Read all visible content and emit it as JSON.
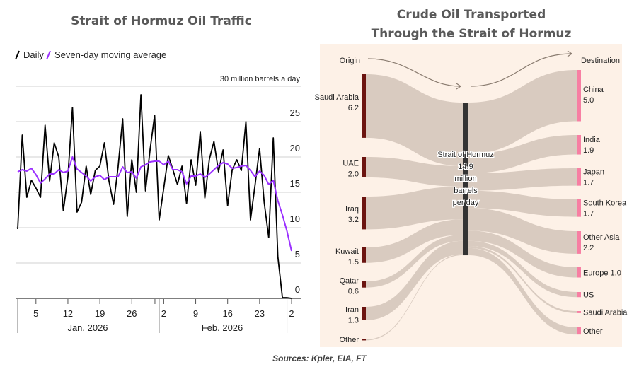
{
  "chart_data": [
    {
      "type": "line",
      "title": "Strait of Hormuz Oil Traffic",
      "unit_label": "30 million barrels a day",
      "ylim": [
        0,
        30
      ],
      "yticks": [
        "0",
        "5",
        "10",
        "15",
        "20",
        "25"
      ],
      "xtick_labels": [
        "5",
        "12",
        "19",
        "26",
        "2",
        "9",
        "16",
        "23",
        "2"
      ],
      "month_labels": [
        "Jan. 2026",
        "Feb. 2026"
      ],
      "x_start": "2026-01-01",
      "x_end": "2026-03-02",
      "grid": true,
      "legend_placement": "top-left",
      "series": [
        {
          "name": "Daily",
          "color": "#000000",
          "values": [
            9.8,
            23.1,
            14.3,
            16.7,
            15.6,
            14.3,
            24.5,
            16.6,
            22.0,
            20.0,
            12.4,
            17.2,
            27.0,
            12.2,
            13.6,
            18.7,
            14.7,
            18.1,
            18.7,
            22.0,
            16.6,
            13.3,
            18.6,
            25.4,
            11.6,
            19.6,
            15.0,
            28.8,
            15.2,
            21.0,
            25.9,
            11.1,
            15.6,
            20.2,
            18.2,
            16.1,
            18.7,
            13.4,
            19.6,
            16.0,
            23.6,
            14.2,
            19.7,
            22.2,
            17.9,
            21.0,
            13.1,
            18.2,
            19.6,
            18.1,
            25.0,
            11.1,
            16.0,
            21.2,
            13.6,
            8.6,
            22.7,
            5.9,
            0.1,
            0.1,
            0.0
          ]
        },
        {
          "name": "Seven-day moving average",
          "color": "#9b30ff",
          "values": [
            17.9,
            18.2,
            18.0,
            18.4,
            17.5,
            16.3,
            16.9,
            17.6,
            17.6,
            18.2,
            17.8,
            18.0,
            20.0,
            18.3,
            17.8,
            17.3,
            16.6,
            17.2,
            17.4,
            16.8,
            17.2,
            17.2,
            17.2,
            18.6,
            17.8,
            17.9,
            17.0,
            18.6,
            18.9,
            19.3,
            19.4,
            19.4,
            18.9,
            19.4,
            18.2,
            18.2,
            17.9,
            16.2,
            17.3,
            17.3,
            17.6,
            17.1,
            17.6,
            18.2,
            18.8,
            19.2,
            19.0,
            18.4,
            18.5,
            18.7,
            18.8,
            18.1,
            17.2,
            18.0,
            17.4,
            16.1,
            16.7,
            13.8,
            11.8,
            9.5,
            6.7
          ]
        }
      ]
    },
    {
      "type": "sankey",
      "title_line1": "Crude Oil Transported",
      "title_line2": "Through the Strait of Hormuz",
      "origin_header": "Origin",
      "destination_header": "Destination",
      "center": {
        "label": [
          "Strait of Hormuz",
          "14.9",
          "million",
          "barrels",
          "per day"
        ],
        "value": 14.9,
        "color": "#333333"
      },
      "origins": [
        {
          "name": "Saudi Arabia",
          "value_label": "6.2",
          "value": 6.2
        },
        {
          "name": "UAE",
          "value_label": "2.0",
          "value": 2.0
        },
        {
          "name": "Iraq",
          "value_label": "3.2",
          "value": 3.2
        },
        {
          "name": "Kuwait",
          "value_label": "1.5",
          "value": 1.5
        },
        {
          "name": "Qatar",
          "value_label": "0.6",
          "value": 0.6
        },
        {
          "name": "Iran",
          "value_label": "1.3",
          "value": 1.3
        },
        {
          "name": "Other",
          "value_label": "",
          "value": 0.1
        }
      ],
      "destinations": [
        {
          "name": "China",
          "value_label": "5.0",
          "value": 5.0
        },
        {
          "name": "India",
          "value_label": "1.9",
          "value": 1.9
        },
        {
          "name": "Japan",
          "value_label": "1.7",
          "value": 1.7
        },
        {
          "name": "South Korea",
          "value_label": "1.7",
          "value": 1.7
        },
        {
          "name": "Other Asia",
          "value_label": "2.2",
          "value": 2.2
        },
        {
          "name": "Europe 1.0",
          "value_label": "",
          "value": 1.0
        },
        {
          "name": "US",
          "value_label": "",
          "value": 0.5
        },
        {
          "name": "Saudi Arabia",
          "value_label": "",
          "value": 0.2
        },
        {
          "name": "Other",
          "value_label": "",
          "value": 0.7
        }
      ],
      "colors": {
        "origin": "#6b1410",
        "destination": "#f77fa3",
        "flow": "#d9cbc0",
        "background": "#fdf1e7",
        "arrow": "#8a7c70"
      }
    }
  ],
  "sources": "Sources: Kpler, EIA, FT"
}
